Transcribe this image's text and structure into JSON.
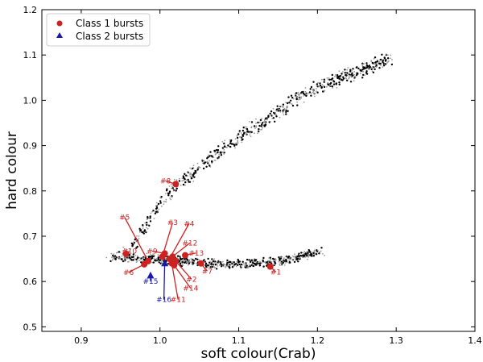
{
  "chart_data": {
    "type": "scatter",
    "xlabel": "soft colour(Crab)",
    "ylabel": "hard colour",
    "xlim": [
      0.85,
      1.4
    ],
    "ylim": [
      0.49,
      1.2
    ],
    "xticks": [
      "0.9",
      "1.0",
      "1.1",
      "1.2",
      "1.3",
      "1.4"
    ],
    "yticks": [
      "0.5",
      "0.6",
      "0.7",
      "0.8",
      "0.9",
      "1.0",
      "1.1",
      "1.2"
    ],
    "legend": {
      "placement": "top-left",
      "entries": [
        {
          "label": "Class 1 bursts",
          "marker": "circle",
          "color": "#cc2222"
        },
        {
          "label": "Class 2 bursts",
          "marker": "triangle",
          "color": "#1a1aaa"
        }
      ]
    },
    "background_tracks": {
      "description_color_dark": "#000000",
      "description_color_light": "#999999",
      "upper_branch": {
        "x": [
          0.96,
          0.98,
          1.0,
          1.02,
          1.05,
          1.08,
          1.11,
          1.14,
          1.17,
          1.2,
          1.23,
          1.26,
          1.29
        ],
        "y": [
          0.66,
          0.72,
          0.77,
          0.81,
          0.85,
          0.89,
          0.93,
          0.96,
          1.0,
          1.03,
          1.05,
          1.07,
          1.09
        ],
        "spread": 0.02
      },
      "lower_branch": {
        "x": [
          0.94,
          0.97,
          1.0,
          1.03,
          1.06,
          1.09,
          1.12,
          1.15,
          1.18,
          1.2
        ],
        "y": [
          0.655,
          0.652,
          0.65,
          0.645,
          0.64,
          0.638,
          0.64,
          0.645,
          0.655,
          0.665
        ],
        "spread": 0.012
      }
    },
    "series": [
      {
        "name": "Class 1 bursts",
        "color": "#cc2222",
        "points": [
          {
            "label": "#1",
            "x": 1.14,
            "y": 0.633,
            "lx": 1.147,
            "ly": 0.621
          },
          {
            "label": "#2",
            "x": 1.02,
            "y": 0.645,
            "lx": 1.04,
            "ly": 0.605
          },
          {
            "label": "#3",
            "x": 1.003,
            "y": 0.655,
            "lx": 1.016,
            "ly": 0.73
          },
          {
            "label": "#4",
            "x": 1.012,
            "y": 0.65,
            "lx": 1.037,
            "ly": 0.728
          },
          {
            "label": "#5",
            "x": 0.985,
            "y": 0.645,
            "lx": 0.955,
            "ly": 0.742
          },
          {
            "label": "#6",
            "x": 0.98,
            "y": 0.638,
            "lx": 0.96,
            "ly": 0.62
          },
          {
            "label": "#7",
            "x": 1.052,
            "y": 0.64,
            "lx": 1.06,
            "ly": 0.623
          },
          {
            "label": "#8",
            "x": 1.02,
            "y": 0.815,
            "lx": 1.007,
            "ly": 0.822
          },
          {
            "label": "#9",
            "x": 1.006,
            "y": 0.662,
            "lx": 0.99,
            "ly": 0.667
          },
          {
            "label": "#10",
            "x": 0.957,
            "y": 0.661,
            "lx": 0.961,
            "ly": 0.667
          },
          {
            "label": "#11",
            "x": 1.015,
            "y": 0.64,
            "lx": 1.023,
            "ly": 0.56
          },
          {
            "label": "#12",
            "x": 1.016,
            "y": 0.655,
            "lx": 1.038,
            "ly": 0.685
          },
          {
            "label": "#13",
            "x": 1.032,
            "y": 0.658,
            "lx": 1.046,
            "ly": 0.663
          },
          {
            "label": "#14",
            "x": 1.018,
            "y": 0.636,
            "lx": 1.039,
            "ly": 0.585
          }
        ]
      },
      {
        "name": "Class 2 bursts",
        "color": "#1a1aaa",
        "points": [
          {
            "label": "#15",
            "x": 0.988,
            "y": 0.613,
            "lx": 0.988,
            "ly": 0.6
          },
          {
            "label": "#16",
            "x": 1.006,
            "y": 0.64,
            "lx": 1.005,
            "ly": 0.56
          }
        ]
      }
    ]
  }
}
